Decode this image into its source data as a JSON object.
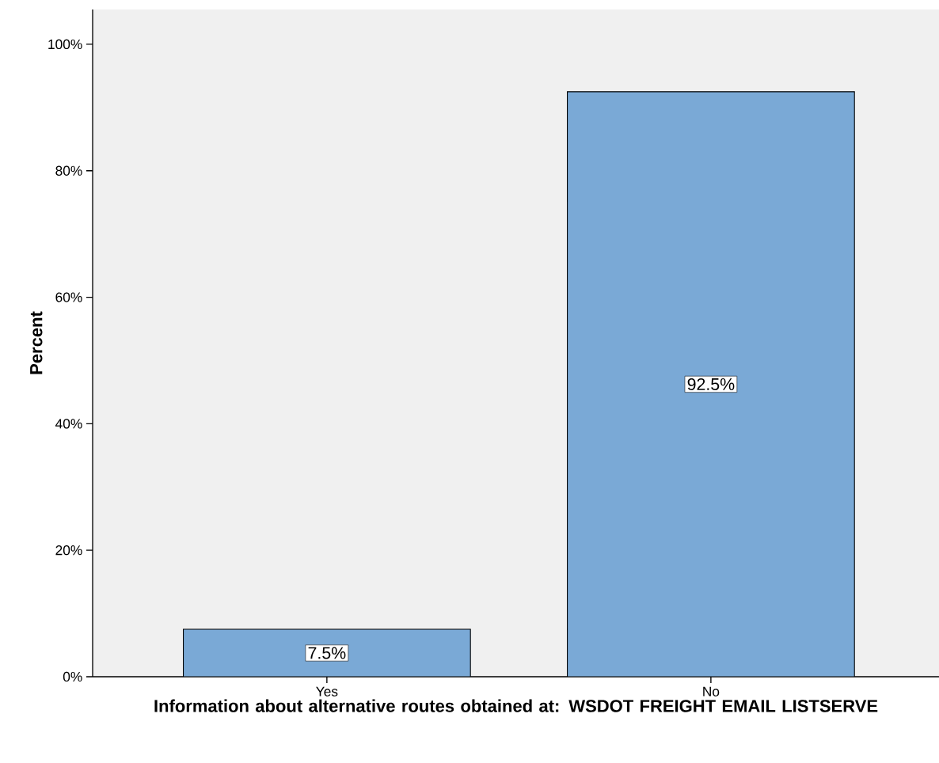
{
  "chart_data": {
    "type": "bar",
    "xlabel": "Information about alternative routes obtained at: WSDOT FREIGHT EMAIL LISTSERVE",
    "ylabel": "Percent",
    "categories": [
      "Yes",
      "No"
    ],
    "values": [
      7.5,
      92.5
    ],
    "value_labels": [
      "7.5%",
      "92.5%"
    ],
    "color": "#7aa9d6",
    "ylim": [
      0,
      105.5
    ],
    "yticks": [
      {
        "value": 0,
        "label": "0%"
      },
      {
        "value": 20,
        "label": "20%"
      },
      {
        "value": 40,
        "label": "40%"
      },
      {
        "value": 60,
        "label": "60%"
      },
      {
        "value": 80,
        "label": "80%"
      },
      {
        "value": 100,
        "label": "100%"
      }
    ],
    "grid": false
  }
}
